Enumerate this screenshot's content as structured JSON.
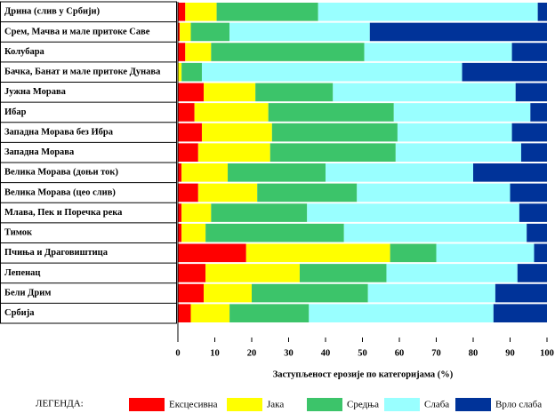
{
  "chart_data": {
    "type": "stacked-bar-horizontal",
    "categories": [
      "Дрина (слив у Србији)",
      "Срем, Мачва и мале притоке Саве",
      "Колубара",
      "Бачка, Банат и мале притоке Дунава",
      "Јужна Морава",
      "Ибар",
      "Западна Морава без Ибра",
      "Западна Морава",
      "Велика Морава (доњи ток)",
      "Велика Морава (цео слив)",
      "Млава, Пек и Поречка река",
      "Тимок",
      "Пчиња и Драговиштица",
      "Лепенац",
      "Бели Дрим",
      "Србија"
    ],
    "series": [
      {
        "name": "Ексцесивна",
        "color": "#ff0000",
        "values": [
          2,
          0.5,
          2,
          0,
          7,
          4.5,
          6.5,
          5.5,
          1,
          5.5,
          1,
          1,
          18.5,
          7.5,
          7,
          3.5
        ]
      },
      {
        "name": "Јака",
        "color": "#ffff00",
        "values": [
          8.5,
          3,
          7,
          1,
          14,
          20,
          19,
          19.5,
          12.5,
          16,
          8,
          6.5,
          39,
          25.5,
          13,
          10.5
        ]
      },
      {
        "name": "Средња",
        "color": "#3cc46a",
        "values": [
          27.5,
          10.5,
          41.5,
          5.5,
          21,
          34,
          34,
          34,
          26.5,
          27,
          26,
          37.5,
          12.5,
          23.5,
          31.5,
          21.5
        ]
      },
      {
        "name": "Слаба",
        "color": "#99ffff",
        "values": [
          59.5,
          38,
          40,
          70.5,
          49.5,
          37,
          31,
          34,
          40,
          41.5,
          57.5,
          49.5,
          26.5,
          35.5,
          34.5,
          50
        ]
      },
      {
        "name": "Врло слаба",
        "color": "#003399",
        "values": [
          2.5,
          48,
          9.5,
          23,
          8.5,
          4.5,
          9.5,
          7,
          20,
          10,
          7.5,
          5.5,
          3.5,
          8,
          14,
          14.5
        ]
      }
    ],
    "xlim": [
      0,
      100
    ],
    "xticks": [
      0,
      10,
      20,
      30,
      40,
      50,
      60,
      70,
      80,
      90,
      100
    ],
    "xlabel": "Заступљеност ерозије по категоријама (%)",
    "legend_title": "ЛЕГЕНДА:"
  }
}
